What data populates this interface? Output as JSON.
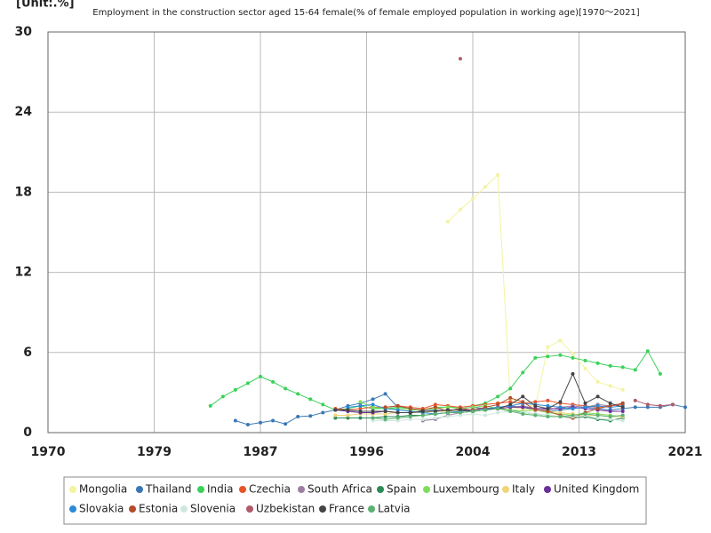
{
  "chart_data": {
    "type": "line",
    "unit": "[Unit:.%]",
    "title": "Employment in the construction sector aged 15-64 female(% of female employed population in working age)[1970～2021]",
    "x": [
      1983,
      1984,
      1985,
      1986,
      1987,
      1988,
      1989,
      1990,
      1991,
      1992,
      1993,
      1994,
      1995,
      1996,
      1997,
      1998,
      1999,
      2000,
      2001,
      2002,
      2003,
      2004,
      2005,
      2006,
      2007,
      2008,
      2009,
      2010,
      2011,
      2012,
      2013,
      2014,
      2015,
      2016,
      2017,
      2018,
      2019,
      2020,
      2021
    ],
    "xlim": [
      1970,
      2021
    ],
    "xticks": [
      1970,
      {
        "value": 1978.5,
        "label": "1979"
      },
      1987,
      {
        "value": 1995.5,
        "label": "1996"
      },
      2004,
      {
        "value": 2012.5,
        "label": "2013"
      },
      2021
    ],
    "ylim": [
      0,
      30
    ],
    "yticks": [
      0,
      6,
      12,
      18,
      24,
      30
    ],
    "grid": true,
    "series": [
      {
        "name": "Mongolia",
        "color": "#f3f3a0",
        "values": [
          null,
          null,
          null,
          null,
          null,
          null,
          null,
          null,
          null,
          null,
          null,
          null,
          null,
          null,
          null,
          null,
          null,
          null,
          null,
          15.8,
          16.7,
          17.5,
          18.4,
          19.3,
          2.5,
          2.3,
          1.9,
          6.4,
          6.9,
          5.9,
          4.8,
          3.8,
          3.5,
          3.2,
          null,
          null,
          null,
          null,
          null
        ]
      },
      {
        "name": "Thailand",
        "color": "#3a78b5",
        "values": [
          null,
          null,
          0.9,
          0.6,
          0.75,
          0.9,
          0.65,
          1.2,
          1.25,
          1.5,
          1.7,
          2.0,
          2.2,
          2.5,
          2.9,
          1.9,
          1.8,
          1.6,
          1.7,
          1.6,
          1.8,
          1.9,
          1.8,
          1.9,
          2.0,
          1.9,
          1.7,
          1.6,
          1.7,
          1.8,
          1.9,
          1.8,
          1.7,
          1.8,
          1.9,
          1.9,
          1.9,
          2.1,
          1.9
        ]
      },
      {
        "name": "India",
        "color": "#3ad15a",
        "values": [
          2.0,
          2.7,
          3.2,
          3.7,
          4.2,
          3.8,
          3.3,
          2.9,
          2.5,
          2.1,
          1.7,
          1.8,
          2.0,
          1.8,
          1.8,
          1.9,
          1.8,
          1.7,
          1.9,
          1.9,
          1.9,
          2.0,
          2.2,
          2.7,
          3.3,
          4.5,
          5.6,
          5.7,
          5.8,
          5.6,
          5.4,
          5.2,
          5.0,
          4.9,
          4.7,
          6.1,
          4.4,
          null,
          null
        ]
      },
      {
        "name": "Czechia",
        "color": "#e8542a",
        "values": [
          null,
          null,
          null,
          null,
          null,
          null,
          null,
          null,
          null,
          null,
          1.8,
          1.7,
          1.8,
          1.9,
          1.9,
          2.0,
          1.9,
          1.8,
          2.1,
          2.0,
          1.9,
          2.0,
          2.1,
          2.2,
          2.3,
          2.2,
          2.3,
          2.4,
          2.2,
          2.1,
          2.0,
          1.9,
          2.0,
          2.1,
          null,
          null,
          null,
          null,
          null
        ]
      },
      {
        "name": "South Africa",
        "color": "#9b7fa0",
        "values": [
          null,
          null,
          null,
          null,
          null,
          null,
          null,
          null,
          null,
          null,
          null,
          null,
          null,
          null,
          null,
          null,
          null,
          0.9,
          1.0,
          1.3,
          1.5,
          1.6,
          1.7,
          1.8,
          1.9,
          2.0,
          1.8,
          1.7,
          1.9,
          2.0,
          1.9,
          2.1,
          2.0,
          2.2,
          null,
          null,
          null,
          null,
          null
        ]
      },
      {
        "name": "Spain",
        "color": "#2e8b57",
        "values": [
          null,
          null,
          null,
          null,
          null,
          null,
          null,
          null,
          null,
          null,
          1.1,
          1.1,
          1.1,
          1.1,
          1.2,
          1.2,
          1.3,
          1.3,
          1.4,
          1.5,
          1.6,
          1.7,
          1.8,
          1.8,
          1.7,
          1.5,
          1.4,
          1.3,
          1.2,
          1.1,
          1.2,
          1.0,
          0.9,
          1.1,
          null,
          null,
          null,
          null,
          null
        ]
      },
      {
        "name": "Luxembourg",
        "color": "#7dde5a",
        "values": [
          null,
          null,
          null,
          null,
          null,
          null,
          null,
          null,
          null,
          null,
          null,
          null,
          2.3,
          1.9,
          1.8,
          1.8,
          1.7,
          1.7,
          1.8,
          1.9,
          1.8,
          1.9,
          2.0,
          1.8,
          1.7,
          1.6,
          1.7,
          1.5,
          1.4,
          1.3,
          1.5,
          1.4,
          1.3,
          1.2,
          null,
          null,
          null,
          null,
          null
        ]
      },
      {
        "name": "Italy",
        "color": "#f0d47a",
        "values": [
          null,
          null,
          null,
          null,
          null,
          null,
          null,
          null,
          null,
          null,
          1.3,
          1.3,
          1.4,
          1.4,
          1.4,
          1.5,
          1.5,
          1.5,
          1.6,
          1.6,
          1.7,
          1.7,
          1.8,
          1.8,
          1.9,
          1.8,
          1.7,
          1.6,
          1.5,
          1.4,
          1.3,
          1.3,
          1.2,
          1.2,
          null,
          null,
          null,
          null,
          null
        ]
      },
      {
        "name": "United Kingdom",
        "color": "#6a2f9a",
        "values": [
          null,
          null,
          null,
          null,
          null,
          null,
          null,
          null,
          null,
          null,
          1.7,
          1.6,
          1.5,
          1.5,
          1.6,
          1.5,
          1.5,
          1.6,
          1.6,
          1.7,
          1.7,
          1.7,
          1.8,
          1.8,
          1.9,
          1.9,
          1.8,
          1.8,
          1.8,
          1.9,
          1.8,
          1.7,
          1.6,
          1.6,
          null,
          null,
          null,
          null,
          null
        ]
      },
      {
        "name": "Slovakia",
        "color": "#2a8ad8",
        "values": [
          null,
          null,
          null,
          null,
          null,
          null,
          null,
          null,
          null,
          null,
          null,
          1.9,
          2.0,
          2.1,
          1.8,
          1.7,
          1.6,
          1.5,
          1.4,
          1.5,
          1.6,
          1.7,
          1.8,
          1.9,
          2.0,
          2.2,
          2.1,
          2.0,
          1.9,
          1.8,
          1.9,
          2.0,
          1.9,
          2.0,
          null,
          null,
          null,
          null,
          null
        ]
      },
      {
        "name": "Estonia",
        "color": "#b34d2a",
        "values": [
          null,
          null,
          null,
          null,
          null,
          null,
          null,
          null,
          null,
          null,
          null,
          null,
          null,
          null,
          1.9,
          2.0,
          1.8,
          1.7,
          1.9,
          1.6,
          1.8,
          1.7,
          1.9,
          2.1,
          2.6,
          2.3,
          1.7,
          1.6,
          1.3,
          1.1,
          1.5,
          1.8,
          2.0,
          2.2,
          null,
          null,
          null,
          null,
          null
        ]
      },
      {
        "name": "Slovenia",
        "color": "#cfe8df",
        "values": [
          null,
          null,
          null,
          null,
          null,
          null,
          null,
          null,
          null,
          null,
          null,
          null,
          null,
          0.9,
          0.9,
          0.9,
          1.0,
          1.0,
          1.1,
          1.2,
          1.3,
          1.4,
          1.3,
          1.5,
          1.6,
          1.5,
          1.4,
          1.3,
          1.2,
          1.2,
          1.3,
          1.1,
          1.0,
          0.9,
          null,
          null,
          null,
          null,
          null
        ]
      },
      {
        "name": "Uzbekistan",
        "color": "#b05a6a",
        "values": [
          null,
          null,
          null,
          null,
          null,
          null,
          null,
          null,
          null,
          null,
          null,
          null,
          null,
          null,
          null,
          null,
          null,
          null,
          null,
          null,
          28.0,
          null,
          null,
          null,
          null,
          null,
          null,
          null,
          null,
          null,
          null,
          null,
          null,
          null,
          2.4,
          2.1,
          2.0,
          2.1,
          null
        ]
      },
      {
        "name": "France",
        "color": "#444444",
        "values": [
          null,
          null,
          null,
          null,
          null,
          null,
          null,
          null,
          null,
          null,
          1.7,
          1.7,
          1.6,
          1.6,
          1.6,
          1.5,
          1.5,
          1.6,
          1.6,
          1.7,
          1.7,
          1.6,
          1.7,
          1.8,
          2.1,
          2.7,
          2.0,
          1.8,
          2.3,
          4.4,
          2.2,
          2.7,
          2.2,
          1.9,
          null,
          null,
          null,
          null,
          null
        ]
      },
      {
        "name": "Latvia",
        "color": "#5cb270",
        "values": [
          null,
          null,
          null,
          null,
          null,
          null,
          null,
          null,
          null,
          null,
          null,
          null,
          null,
          1.1,
          1.0,
          1.1,
          1.2,
          1.3,
          1.4,
          1.5,
          1.5,
          1.6,
          1.7,
          1.8,
          1.6,
          1.4,
          1.3,
          1.2,
          1.2,
          1.3,
          1.4,
          1.3,
          1.2,
          1.3,
          null,
          null,
          null,
          null,
          null
        ]
      }
    ]
  }
}
